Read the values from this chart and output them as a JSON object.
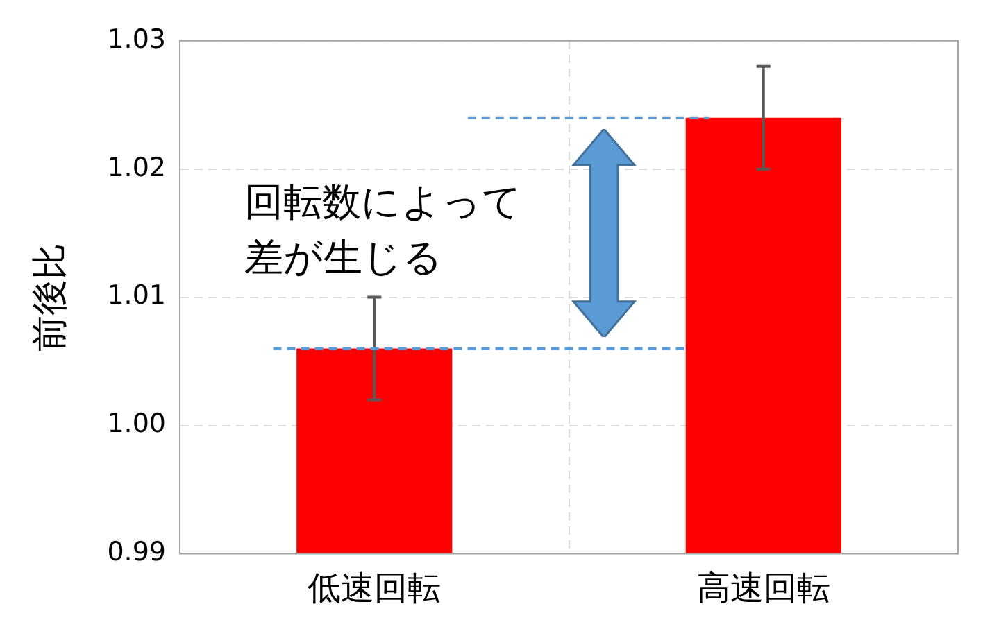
{
  "chart_data": {
    "type": "bar",
    "ylabel": "前後比",
    "categories": [
      "低速回転",
      "高速回転"
    ],
    "values": [
      1.006,
      1.024
    ],
    "errors": [
      0.004,
      0.004
    ],
    "color": "#ff0000",
    "ylim": [
      0.99,
      1.03
    ],
    "yticks": [
      0.99,
      {
        "value": 1,
        "label": "1.00"
      },
      1.01,
      1.02,
      1.03
    ],
    "grid": true,
    "ref_lines": [
      {
        "axis": "y",
        "value": 1.006,
        "color": "#5b9bd5",
        "line_style": "dashed"
      },
      {
        "axis": "y",
        "value": 1.024,
        "color": "#5b9bd5",
        "line_style": "dashed"
      }
    ],
    "annotations": [
      "回転数によって差が生じる"
    ]
  }
}
